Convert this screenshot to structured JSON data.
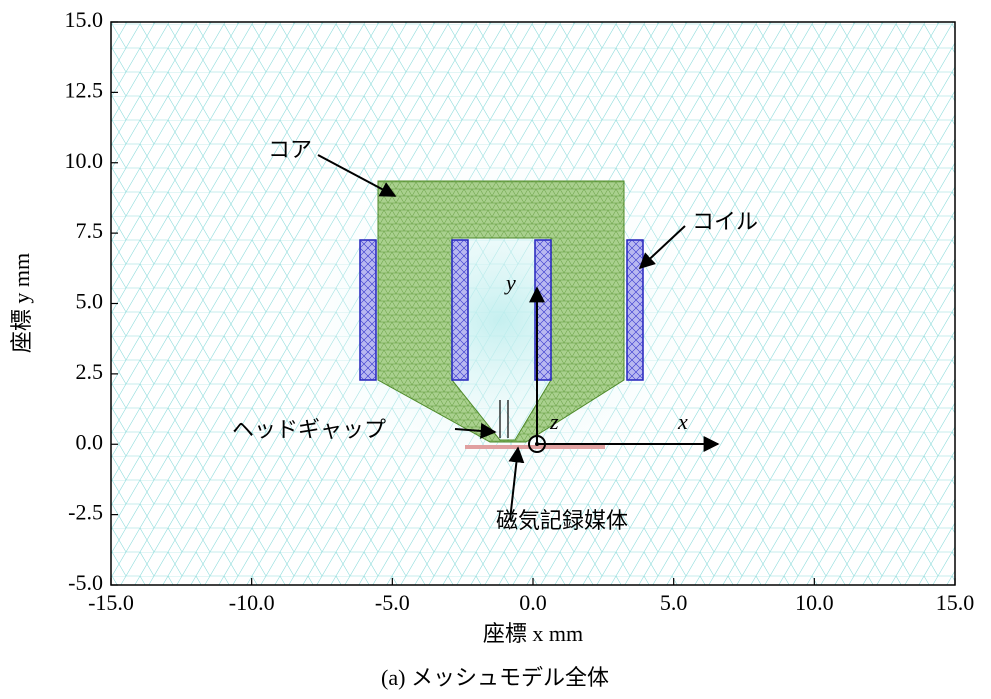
{
  "chart_data": {
    "type": "mesh",
    "xlabel": "座標 x mm",
    "ylabel": "座標 y mm",
    "caption": "(a) メッシュモデル全体",
    "xlim": [
      -15,
      15
    ],
    "ylim": [
      -5,
      15
    ],
    "xticks": [
      {
        "value": -15,
        "label": "-15.0"
      },
      {
        "value": -10,
        "label": "-10.0"
      },
      {
        "value": -5,
        "label": "-5.0"
      },
      {
        "value": 0,
        "label": "0.0"
      },
      {
        "value": 5,
        "label": "5.0"
      },
      {
        "value": 10,
        "label": "10.0"
      },
      {
        "value": 15,
        "label": "15.0"
      }
    ],
    "yticks": [
      {
        "value": -5,
        "label": "-5.0"
      },
      {
        "value": -2.5,
        "label": "-2.5"
      },
      {
        "value": 0,
        "label": "0.0"
      },
      {
        "value": 2.5,
        "label": "2.5"
      },
      {
        "value": 5,
        "label": "5.0"
      },
      {
        "value": 7.5,
        "label": "7.5"
      },
      {
        "value": 10,
        "label": "10.0"
      },
      {
        "value": 12.5,
        "label": "12.5"
      },
      {
        "value": 15,
        "label": "15.0"
      }
    ],
    "annotations": [
      "コア",
      "コイル",
      "ヘッドギャップ",
      "磁気記録媒体"
    ],
    "axis_symbols": [
      "x",
      "y",
      "z"
    ]
  }
}
